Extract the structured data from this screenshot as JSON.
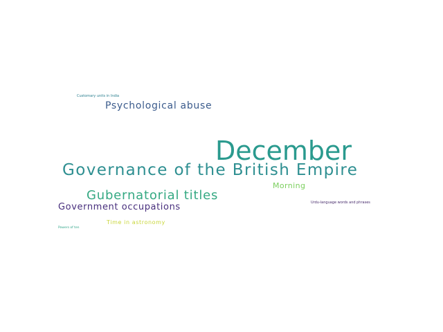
{
  "words": [
    {
      "text": "December",
      "color": "#2a9a8e"
    },
    {
      "text": "Governance of the British Empire",
      "color": "#2e8f91"
    },
    {
      "text": "Gubernatorial titles",
      "color": "#35a983"
    },
    {
      "text": "Psychological abuse",
      "color": "#3b5b8c"
    },
    {
      "text": "Government occupations",
      "color": "#472e7c"
    },
    {
      "text": "Morning",
      "color": "#7bcf5e"
    },
    {
      "text": "Time in astronomy",
      "color": "#c9d63a"
    },
    {
      "text": "Customary units in India",
      "color": "#2a7f8f"
    },
    {
      "text": "Urdu-language words and phrases",
      "color": "#462a6b"
    },
    {
      "text": "Powers of ten",
      "color": "#2ea488"
    }
  ]
}
